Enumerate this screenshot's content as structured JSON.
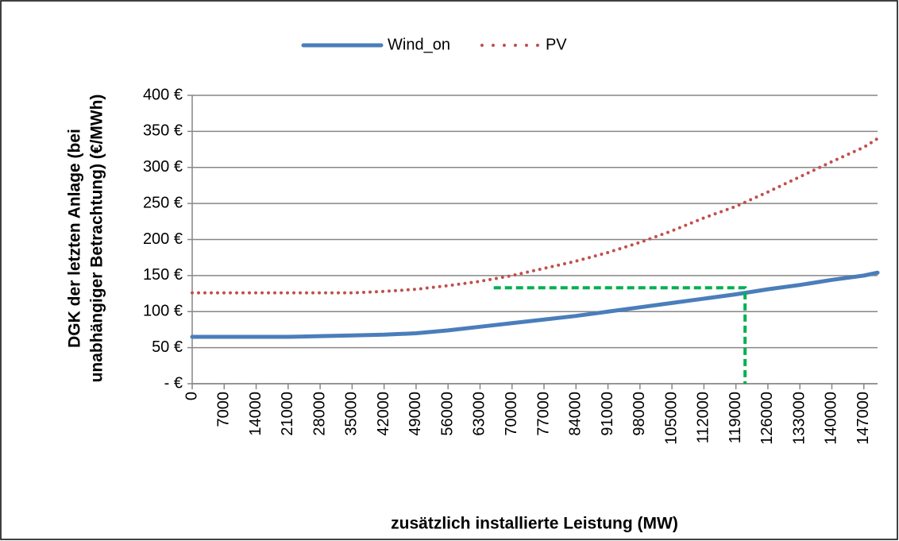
{
  "chart_data": {
    "type": "line",
    "ylabel": [
      "DGK der letzten Anlage (bei",
      "unabhängiger Betrachtung) (€/MWh)"
    ],
    "xlabel": "zusätzlich installierte Leistung (MW)",
    "x": [
      0,
      7000,
      14000,
      21000,
      28000,
      35000,
      42000,
      49000,
      56000,
      63000,
      70000,
      77000,
      84000,
      91000,
      98000,
      105000,
      112000,
      119000,
      126000,
      133000,
      140000,
      147000,
      150000
    ],
    "series": [
      {
        "name": "Wind_on",
        "color": "#4a7ebb",
        "style": "solid",
        "values": [
          65,
          65,
          65,
          65,
          66,
          67,
          68,
          70,
          74,
          79,
          84,
          89,
          94,
          100,
          106,
          112,
          118,
          124,
          131,
          137,
          144,
          150,
          154
        ]
      },
      {
        "name": "PV",
        "color": "#c0504d",
        "style": "dotted",
        "values": [
          126,
          126,
          126,
          126,
          126,
          126,
          128,
          131,
          136,
          142,
          150,
          160,
          170,
          182,
          196,
          212,
          230,
          246,
          266,
          287,
          308,
          328,
          340
        ]
      }
    ],
    "guide": {
      "color": "#00b050",
      "x": [
        66000,
        121000,
        121000
      ],
      "y": [
        133,
        133,
        0
      ]
    },
    "xlim": [
      0,
      150000
    ],
    "xticks": [
      0,
      7000,
      14000,
      21000,
      28000,
      35000,
      42000,
      49000,
      56000,
      63000,
      70000,
      77000,
      84000,
      91000,
      98000,
      105000,
      112000,
      119000,
      126000,
      133000,
      140000,
      147000
    ],
    "ylim": [
      0,
      400
    ],
    "yticks": [
      {
        "value": 0,
        "label": "- €"
      },
      {
        "value": 50,
        "label": "50 €"
      },
      {
        "value": 100,
        "label": "100 €"
      },
      {
        "value": 150,
        "label": "150 €"
      },
      {
        "value": 200,
        "label": "200 €"
      },
      {
        "value": 250,
        "label": "250 €"
      },
      {
        "value": 300,
        "label": "300 €"
      },
      {
        "value": 350,
        "label": "350 €"
      },
      {
        "value": 400,
        "label": "400 €"
      }
    ],
    "grid": true,
    "legend": "top"
  }
}
